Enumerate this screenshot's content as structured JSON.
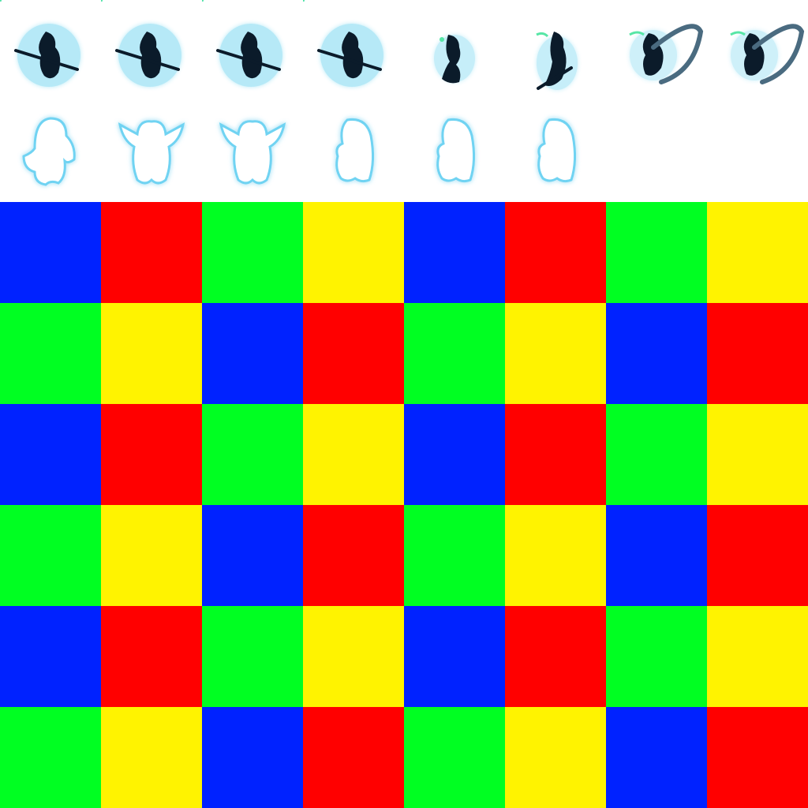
{
  "sprite_sheet": {
    "rows": [
      {
        "name": "reaper",
        "frames": [
          {
            "pose": "scythe-low"
          },
          {
            "pose": "scythe-low"
          },
          {
            "pose": "scythe-low"
          },
          {
            "pose": "scythe-low"
          },
          {
            "pose": "crouch"
          },
          {
            "pose": "lunge"
          },
          {
            "pose": "scythe-swing"
          },
          {
            "pose": "scythe-swing"
          }
        ]
      },
      {
        "name": "ghost",
        "frames": [
          {
            "pose": "arms-down"
          },
          {
            "pose": "arms-up"
          },
          {
            "pose": "arms-up"
          },
          {
            "pose": "side"
          },
          {
            "pose": "side"
          },
          {
            "pose": "side"
          }
        ]
      }
    ],
    "colors": {
      "reaper_body": "#0b1b2a",
      "reaper_aura": "#5fd0ee",
      "reaper_spark": "#57e6a6",
      "ghost_body": "#ffffff",
      "ghost_glow": "#6fd3f2"
    }
  },
  "tile_grid": {
    "cols": 8,
    "rows": 6,
    "colors": {
      "B": "#0022ff",
      "R": "#ff0000",
      "G": "#00ff22",
      "Y": "#fff300"
    },
    "pattern": [
      [
        "B",
        "R",
        "G",
        "Y",
        "B",
        "R",
        "G",
        "Y"
      ],
      [
        "G",
        "Y",
        "B",
        "R",
        "G",
        "Y",
        "B",
        "R"
      ],
      [
        "B",
        "R",
        "G",
        "Y",
        "B",
        "R",
        "G",
        "Y"
      ],
      [
        "G",
        "Y",
        "B",
        "R",
        "G",
        "Y",
        "B",
        "R"
      ],
      [
        "B",
        "R",
        "G",
        "Y",
        "B",
        "R",
        "G",
        "Y"
      ],
      [
        "G",
        "Y",
        "B",
        "R",
        "G",
        "Y",
        "B",
        "R"
      ]
    ]
  }
}
